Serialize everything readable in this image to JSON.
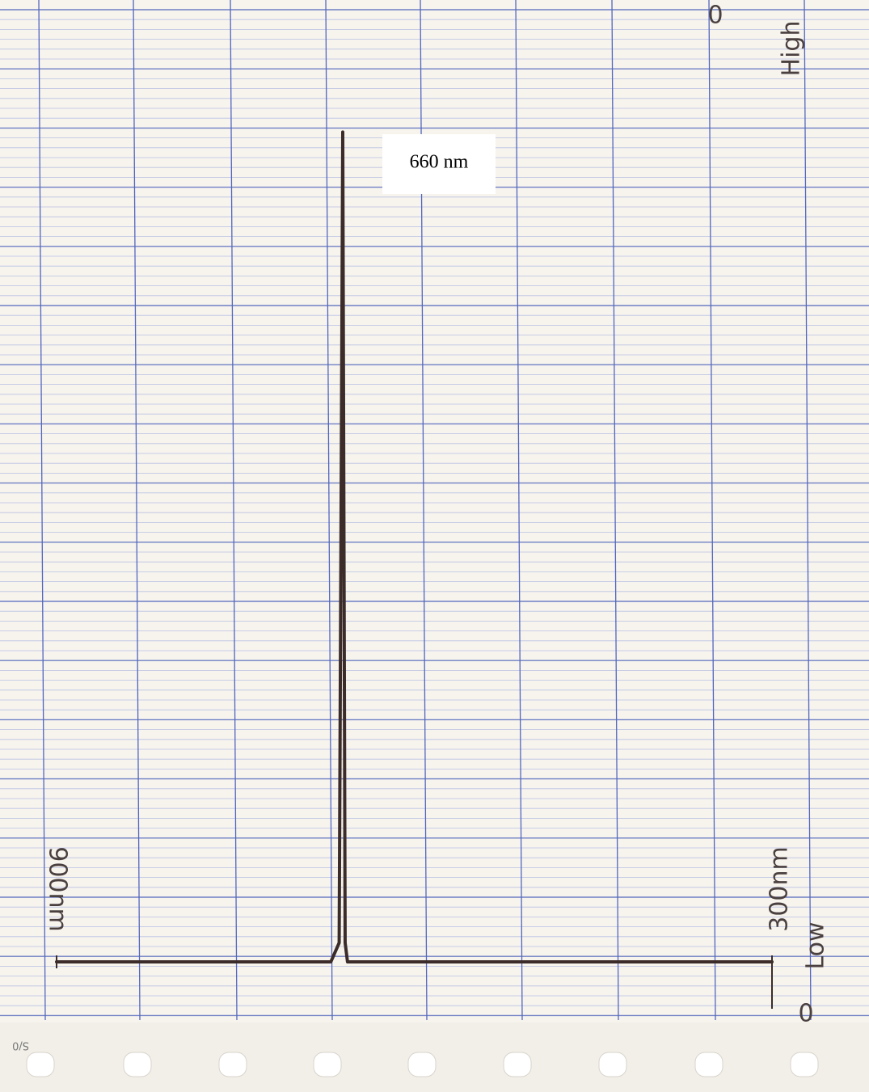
{
  "chart_data": {
    "type": "line",
    "annotation": "660 nm",
    "x": [
      900,
      670,
      663,
      660,
      658,
      656,
      300
    ],
    "values": [
      0,
      0,
      2,
      87,
      2,
      0,
      0
    ],
    "color": "#3b2c2a",
    "xlim": [
      900,
      300
    ],
    "ylim": [
      0,
      100
    ],
    "xticks": [
      {
        "value": 900,
        "label": "900nm"
      },
      {
        "value": 300,
        "label": "300nm"
      }
    ],
    "y_high_label": "High",
    "y_low_label": "Low",
    "y_top_zero": "0",
    "y_bottom_zero": "0",
    "paper_code": "S/0"
  }
}
